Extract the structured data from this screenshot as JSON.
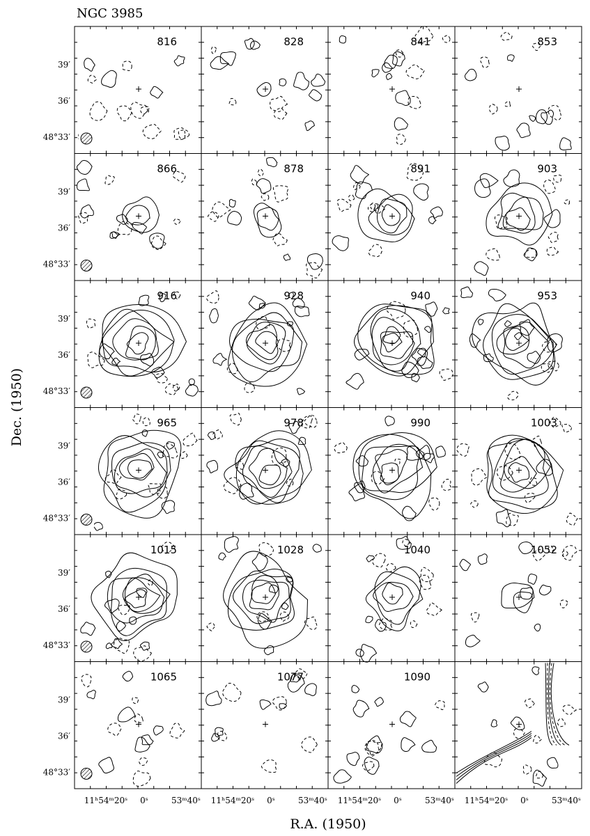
{
  "header": {
    "title": "NGC 3985"
  },
  "panels": [
    "816",
    "828",
    "841",
    "853",
    "866",
    "878",
    "891",
    "903",
    "916",
    "928",
    "940",
    "953",
    "965",
    "978",
    "990",
    "1003",
    "1015",
    "1028",
    "1040",
    "1052",
    "1065",
    "1077",
    "1090"
  ],
  "y_tick_labels": [
    "39′",
    "36′",
    "48°33′"
  ],
  "x_tick_labels": [
    "11ʰ54ᵐ20ˢ",
    "0ˢ",
    "53ᵐ40ˢ"
  ],
  "y_axis_label": "Dec. (1950)",
  "x_axis_label": "R.A. (1950)"
}
